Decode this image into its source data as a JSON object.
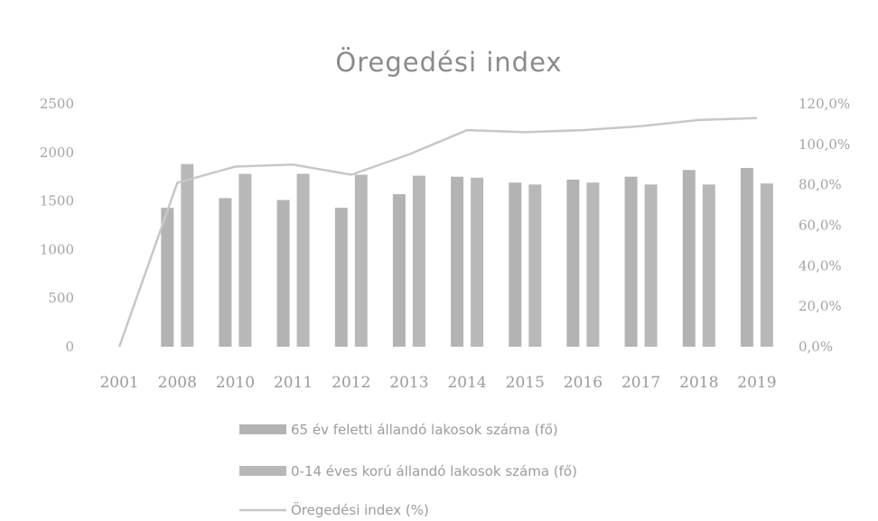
{
  "chart_data": {
    "type": "bar",
    "title": "Öregedési index",
    "categories": [
      "2001",
      "2008",
      "2010",
      "2011",
      "2012",
      "2013",
      "2014",
      "2015",
      "2016",
      "2017",
      "2018",
      "2019"
    ],
    "series": [
      {
        "name": "65 év feletti állandó lakosok száma (fő)",
        "type": "bar",
        "axis": "left",
        "values": [
          0,
          1430,
          1530,
          1510,
          1430,
          1570,
          1750,
          1690,
          1720,
          1750,
          1820,
          1840
        ]
      },
      {
        "name": "0-14 éves korú állandó lakosok száma (fő)",
        "type": "bar",
        "axis": "left",
        "values": [
          0,
          1880,
          1780,
          1780,
          1770,
          1760,
          1740,
          1670,
          1690,
          1670,
          1670,
          1680
        ]
      },
      {
        "name": "Öregedési index (%)",
        "type": "line",
        "axis": "right",
        "values": [
          0,
          81,
          89,
          90,
          85,
          95,
          107,
          106,
          107,
          109,
          112,
          113
        ]
      }
    ],
    "y_left": {
      "min": 0,
      "max": 2500,
      "ticks": [
        "0",
        "500",
        "1000",
        "1500",
        "2000",
        "2500"
      ]
    },
    "y_right": {
      "min": 0,
      "max": 120,
      "ticks": [
        "0,0%",
        "20,0%",
        "40,0%",
        "60,0%",
        "80,0%",
        "100,0%",
        "120,0%"
      ]
    },
    "grid": false,
    "legend_position": "bottom",
    "colors": {
      "bar1": "#b3b3b3",
      "bar2": "#b8b8b8",
      "line": "#c7c7c7"
    }
  }
}
